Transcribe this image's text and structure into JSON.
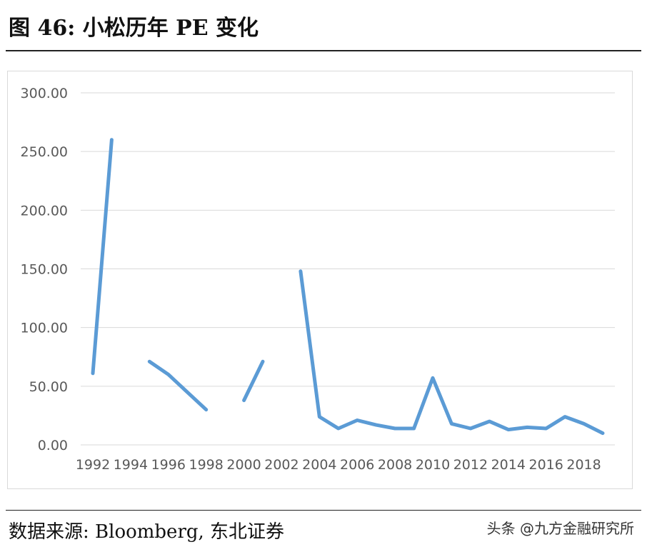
{
  "figure_title": "图 46: 小松历年 PE 变化",
  "source_text": "数据来源: Bloomberg, 东北证券",
  "watermark_text": "头条 @九方金融研究所",
  "chart_data": {
    "type": "line",
    "title": "",
    "xlabel": "",
    "ylabel": "",
    "ylim": [
      0,
      300
    ],
    "yticks": [
      "0.00",
      "50.00",
      "100.00",
      "150.00",
      "200.00",
      "250.00",
      "300.00"
    ],
    "xticks": [
      "1992",
      "1994",
      "1996",
      "1998",
      "2000",
      "2002",
      "2004",
      "2006",
      "2008",
      "2010",
      "2012",
      "2014",
      "2016",
      "2018"
    ],
    "xlim": [
      1992,
      2019
    ],
    "grid": true,
    "line_color": "#5b9bd5",
    "x": [
      1992,
      1993,
      1994,
      1995,
      1996,
      1997,
      1998,
      1999,
      2000,
      2001,
      2002,
      2003,
      2004,
      2005,
      2006,
      2007,
      2008,
      2009,
      2010,
      2011,
      2012,
      2013,
      2014,
      2015,
      2016,
      2017,
      2018,
      2019
    ],
    "values": [
      61,
      260,
      null,
      71,
      60,
      45,
      30,
      null,
      38,
      71,
      null,
      148,
      24,
      14,
      21,
      17,
      14,
      14,
      57,
      18,
      14,
      20,
      13,
      15,
      14,
      24,
      18,
      10
    ]
  }
}
